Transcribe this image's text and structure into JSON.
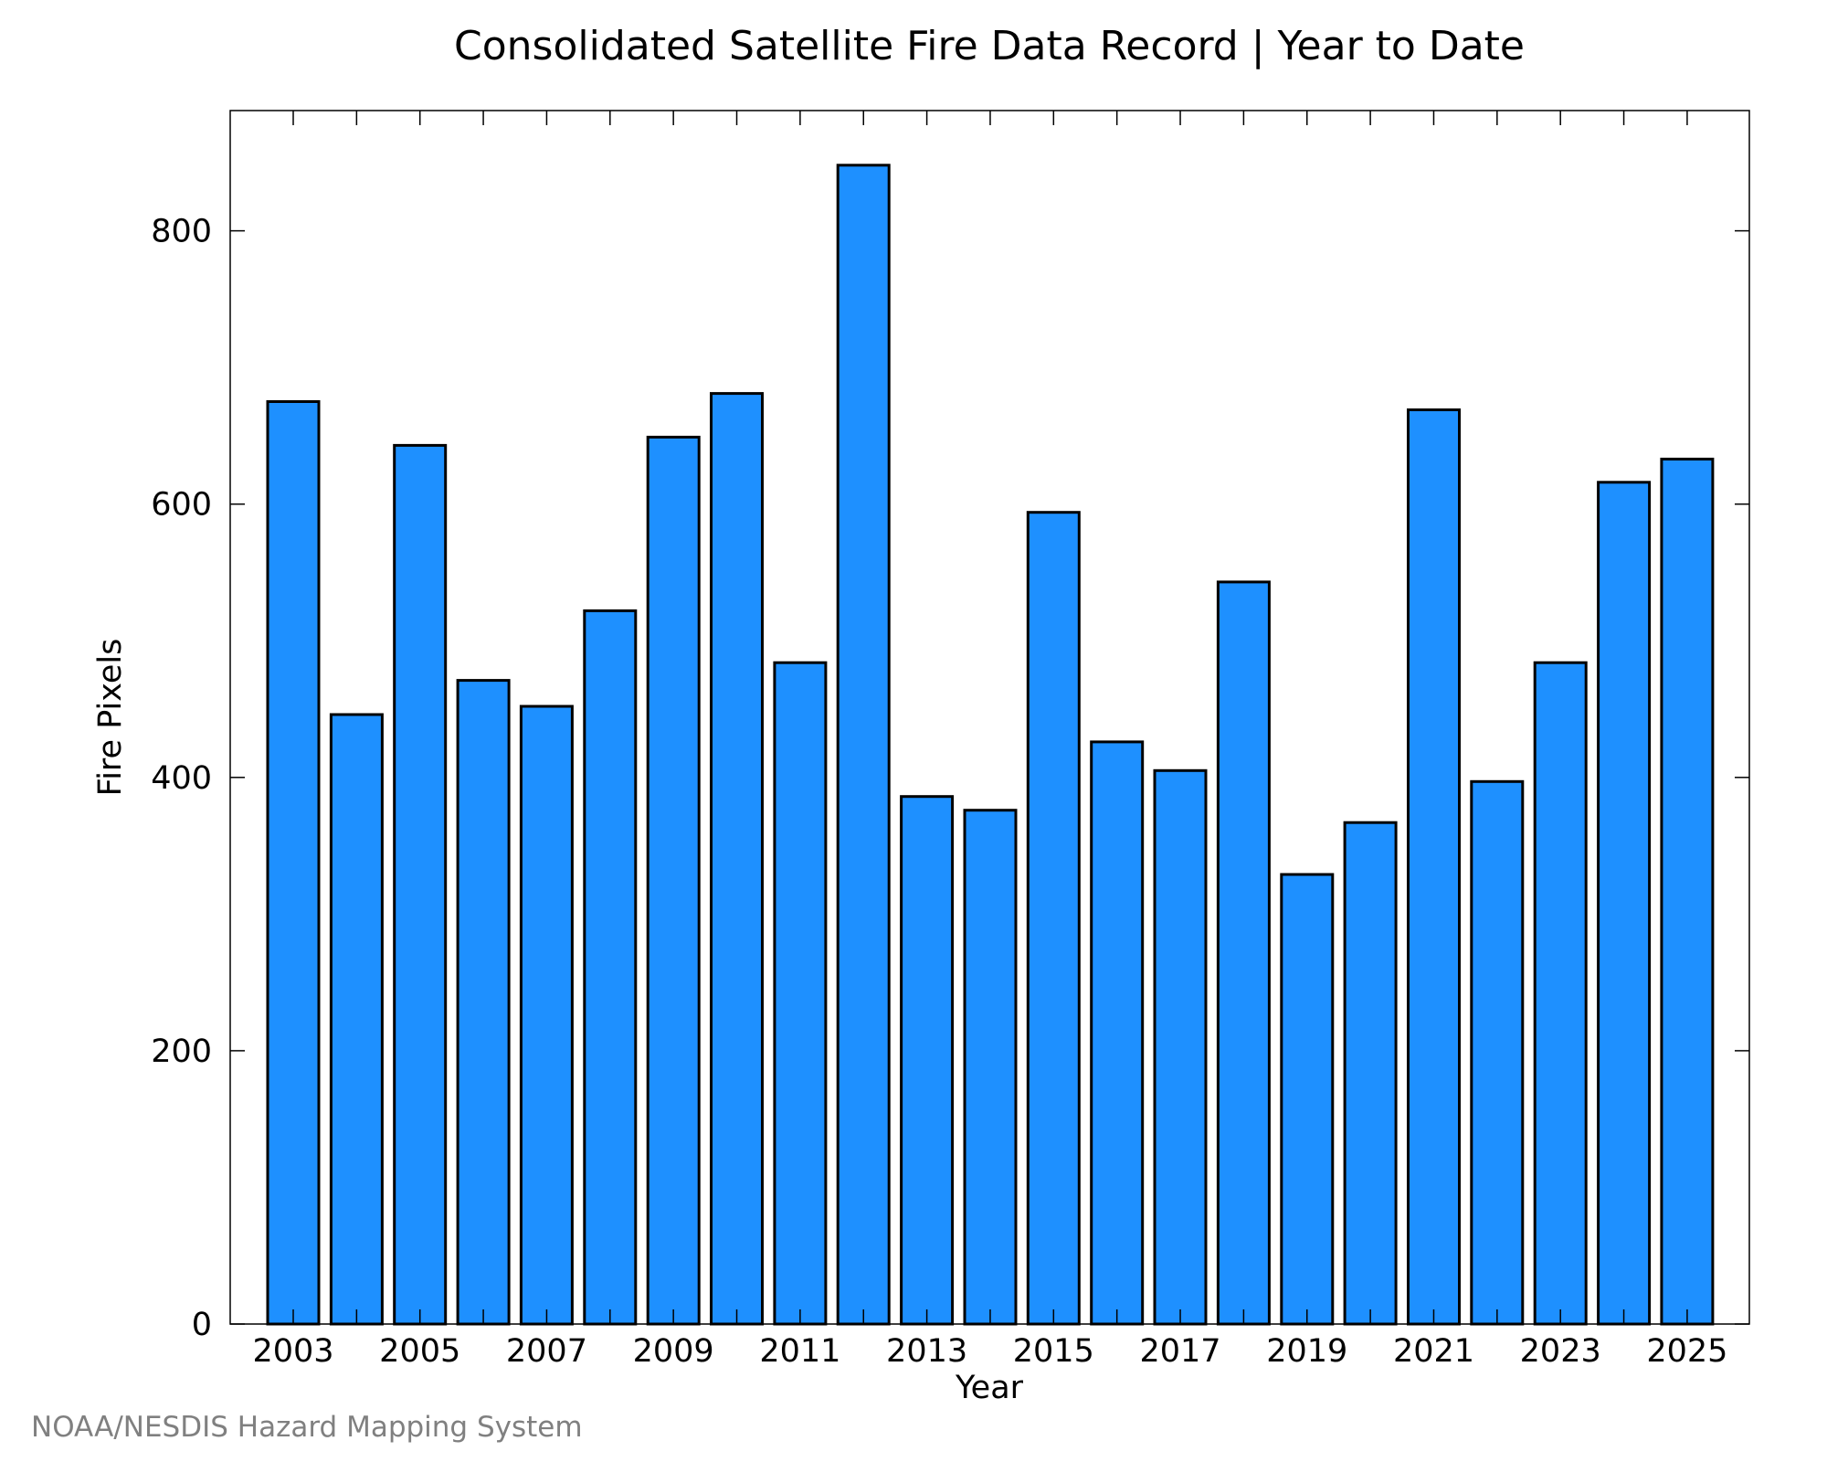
{
  "chart_data": {
    "type": "bar",
    "title": "Consolidated Satellite Fire Data Record | Year to Date",
    "xlabel": "Year",
    "ylabel": "Fire Pixels",
    "categories": [
      "2003",
      "2004",
      "2005",
      "2006",
      "2007",
      "2008",
      "2009",
      "2010",
      "2011",
      "2012",
      "2013",
      "2014",
      "2015",
      "2016",
      "2017",
      "2018",
      "2019",
      "2020",
      "2021",
      "2022",
      "2023",
      "2024",
      "2025"
    ],
    "x_tick_labels": [
      "2003",
      "2005",
      "2007",
      "2009",
      "2011",
      "2013",
      "2015",
      "2017",
      "2019",
      "2021",
      "2023",
      "2025"
    ],
    "values": [
      675,
      446,
      643,
      471,
      452,
      522,
      649,
      681,
      484,
      848,
      386,
      376,
      594,
      426,
      405,
      543,
      329,
      367,
      669,
      397,
      484,
      616,
      633
    ],
    "ylim": [
      0,
      888
    ],
    "y_ticks": [
      0,
      200,
      400,
      600,
      800
    ],
    "y_tick_labels": [
      "0",
      "200",
      "400",
      "600",
      "800"
    ],
    "bar_color": "#1e90ff",
    "grid": false,
    "legend": "none"
  },
  "credit": "NOAA/NESDIS Hazard Mapping System"
}
